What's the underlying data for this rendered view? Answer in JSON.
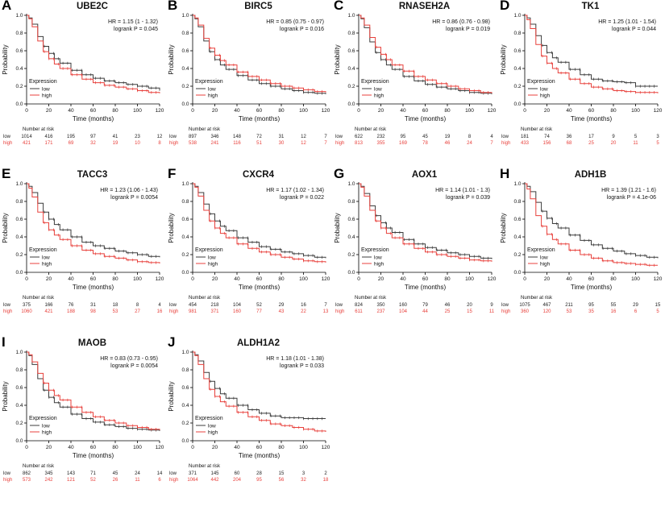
{
  "chart_data": {
    "type": "line",
    "subtype": "kaplan-meier-survival",
    "xlabel": "Time (months)",
    "ylabel": "Probability",
    "x_ticks": [
      0,
      20,
      40,
      60,
      80,
      100,
      120
    ],
    "y_ticks": [
      "0.0",
      "0.2",
      "0.4",
      "0.6",
      "0.8",
      "1.0"
    ],
    "xlim": [
      0,
      120
    ],
    "ylim": [
      0,
      1
    ],
    "grid": false,
    "legend_title": "Expression",
    "legend_items": [
      "low",
      "high"
    ],
    "legend_position": "bottom-left",
    "risk_header": "Number at risk",
    "colors": {
      "low": "#3c3c3c",
      "high": "#e8413c"
    },
    "curve_time_points": [
      0,
      2,
      5,
      10,
      15,
      20,
      25,
      30,
      40,
      50,
      60,
      70,
      80,
      90,
      100,
      110,
      120
    ],
    "panels": [
      {
        "letter": "A",
        "gene": "UBE2C",
        "hr": "HR = 1.15 (1 - 1.32)",
        "logrank": "logrank P = 0.045",
        "low": {
          "label": "low",
          "risk": [
            1014,
            416,
            195,
            97,
            41,
            23,
            12
          ],
          "s": [
            1,
            0.97,
            0.9,
            0.76,
            0.65,
            0.57,
            0.51,
            0.46,
            0.38,
            0.33,
            0.29,
            0.26,
            0.24,
            0.22,
            0.2,
            0.18,
            0.15
          ]
        },
        "high": {
          "label": "high",
          "risk": [
            421,
            171,
            69,
            32,
            19,
            10,
            8
          ],
          "s": [
            1,
            0.96,
            0.87,
            0.71,
            0.59,
            0.51,
            0.45,
            0.4,
            0.33,
            0.28,
            0.24,
            0.21,
            0.19,
            0.17,
            0.15,
            0.13,
            0.12
          ]
        }
      },
      {
        "letter": "B",
        "gene": "BIRC5",
        "hr": "HR = 0.85 (0.75 - 0.97)",
        "logrank": "logrank P = 0.016",
        "low": {
          "label": "low",
          "risk": [
            897,
            346,
            148,
            72,
            31,
            12,
            7
          ],
          "s": [
            1,
            0.96,
            0.87,
            0.71,
            0.59,
            0.5,
            0.44,
            0.39,
            0.32,
            0.27,
            0.23,
            0.2,
            0.17,
            0.15,
            0.13,
            0.12,
            0.11
          ]
        },
        "high": {
          "label": "high",
          "risk": [
            538,
            241,
            116,
            51,
            30,
            12,
            7
          ],
          "s": [
            1,
            0.97,
            0.89,
            0.74,
            0.63,
            0.55,
            0.49,
            0.44,
            0.36,
            0.31,
            0.27,
            0.23,
            0.2,
            0.18,
            0.16,
            0.14,
            0.13
          ]
        }
      },
      {
        "letter": "C",
        "gene": "RNASEH2A",
        "hr": "HR = 0.86 (0.76 - 0.98)",
        "logrank": "logrank P = 0.019",
        "low": {
          "label": "low",
          "risk": [
            622,
            232,
            95,
            45,
            19,
            8,
            4
          ],
          "s": [
            1,
            0.96,
            0.86,
            0.7,
            0.58,
            0.5,
            0.44,
            0.39,
            0.31,
            0.26,
            0.22,
            0.19,
            0.17,
            0.15,
            0.13,
            0.12,
            0.11
          ]
        },
        "high": {
          "label": "high",
          "risk": [
            813,
            355,
            169,
            78,
            46,
            24,
            7
          ],
          "s": [
            1,
            0.97,
            0.89,
            0.75,
            0.64,
            0.56,
            0.5,
            0.44,
            0.37,
            0.31,
            0.27,
            0.23,
            0.2,
            0.17,
            0.15,
            0.13,
            0.12
          ]
        }
      },
      {
        "letter": "D",
        "gene": "TK1",
        "hr": "HR = 1.25 (1.01 - 1.54)",
        "logrank": "logrank P = 0.044",
        "low": {
          "label": "low",
          "risk": [
            181,
            74,
            36,
            17,
            9,
            5,
            3
          ],
          "s": [
            1,
            0.97,
            0.9,
            0.77,
            0.66,
            0.58,
            0.52,
            0.47,
            0.39,
            0.33,
            0.28,
            0.26,
            0.25,
            0.24,
            0.2,
            0.2,
            0.2
          ]
        },
        "high": {
          "label": "high",
          "risk": [
            433,
            156,
            68,
            25,
            20,
            11,
            5
          ],
          "s": [
            1,
            0.95,
            0.85,
            0.67,
            0.54,
            0.46,
            0.4,
            0.35,
            0.28,
            0.23,
            0.19,
            0.17,
            0.15,
            0.14,
            0.13,
            0.13,
            0.12
          ]
        }
      },
      {
        "letter": "E",
        "gene": "TACC3",
        "hr": "HR = 1.23 (1.06 - 1.43)",
        "logrank": "logrank P = 0.0054",
        "low": {
          "label": "low",
          "risk": [
            375,
            166,
            76,
            31,
            18,
            8,
            4
          ],
          "s": [
            1,
            0.97,
            0.9,
            0.78,
            0.68,
            0.6,
            0.54,
            0.48,
            0.4,
            0.34,
            0.3,
            0.27,
            0.24,
            0.22,
            0.2,
            0.18,
            0.17
          ]
        },
        "high": {
          "label": "high",
          "risk": [
            1060,
            421,
            188,
            98,
            53,
            27,
            16
          ],
          "s": [
            1,
            0.95,
            0.85,
            0.68,
            0.56,
            0.48,
            0.42,
            0.37,
            0.3,
            0.25,
            0.21,
            0.18,
            0.16,
            0.14,
            0.12,
            0.11,
            0.1
          ]
        }
      },
      {
        "letter": "F",
        "gene": "CXCR4",
        "hr": "HR = 1.17 (1.02 - 1.34)",
        "logrank": "logrank P = 0.022",
        "low": {
          "label": "low",
          "risk": [
            454,
            218,
            104,
            52,
            29,
            16,
            7
          ],
          "s": [
            1,
            0.97,
            0.9,
            0.77,
            0.66,
            0.58,
            0.52,
            0.47,
            0.39,
            0.34,
            0.29,
            0.26,
            0.23,
            0.21,
            0.19,
            0.17,
            0.16
          ]
        },
        "high": {
          "label": "high",
          "risk": [
            981,
            371,
            160,
            77,
            43,
            22,
            13
          ],
          "s": [
            1,
            0.96,
            0.86,
            0.7,
            0.58,
            0.5,
            0.44,
            0.39,
            0.32,
            0.27,
            0.23,
            0.2,
            0.17,
            0.15,
            0.13,
            0.12,
            0.11
          ]
        }
      },
      {
        "letter": "G",
        "gene": "AOX1",
        "hr": "HR = 1.14 (1.01 - 1.3)",
        "logrank": "logrank P = 0.039",
        "low": {
          "label": "low",
          "risk": [
            824,
            350,
            160,
            79,
            46,
            20,
            9
          ],
          "s": [
            1,
            0.97,
            0.89,
            0.75,
            0.64,
            0.56,
            0.5,
            0.45,
            0.37,
            0.32,
            0.28,
            0.25,
            0.22,
            0.2,
            0.18,
            0.16,
            0.15
          ]
        },
        "high": {
          "label": "high",
          "risk": [
            611,
            237,
            104,
            44,
            25,
            15,
            11
          ],
          "s": [
            1,
            0.96,
            0.86,
            0.7,
            0.58,
            0.5,
            0.44,
            0.39,
            0.32,
            0.27,
            0.23,
            0.2,
            0.18,
            0.16,
            0.14,
            0.13,
            0.12
          ]
        }
      },
      {
        "letter": "H",
        "gene": "ADH1B",
        "hr": "HR = 1.39 (1.21 - 1.6)",
        "logrank": "logrank P = 4.1e-06",
        "low": {
          "label": "low",
          "risk": [
            1075,
            467,
            211,
            95,
            55,
            29,
            15
          ],
          "s": [
            1,
            0.97,
            0.91,
            0.79,
            0.69,
            0.61,
            0.55,
            0.5,
            0.42,
            0.36,
            0.31,
            0.27,
            0.24,
            0.21,
            0.19,
            0.17,
            0.16
          ]
        },
        "high": {
          "label": "high",
          "risk": [
            360,
            120,
            53,
            35,
            16,
            6,
            5
          ],
          "s": [
            1,
            0.94,
            0.83,
            0.64,
            0.52,
            0.43,
            0.37,
            0.32,
            0.25,
            0.2,
            0.16,
            0.13,
            0.11,
            0.1,
            0.09,
            0.08,
            0.08
          ]
        }
      },
      {
        "letter": "I",
        "gene": "MAOB",
        "hr": "HR = 0.83 (0.73 - 0.95)",
        "logrank": "logrank P = 0.0054",
        "low": {
          "label": "low",
          "risk": [
            862,
            345,
            143,
            71,
            45,
            24,
            14
          ],
          "s": [
            1,
            0.96,
            0.86,
            0.7,
            0.57,
            0.49,
            0.43,
            0.38,
            0.3,
            0.25,
            0.21,
            0.18,
            0.16,
            0.14,
            0.13,
            0.12,
            0.11
          ]
        },
        "high": {
          "label": "high",
          "risk": [
            573,
            242,
            121,
            52,
            26,
            11,
            6
          ],
          "s": [
            1,
            0.97,
            0.89,
            0.76,
            0.65,
            0.57,
            0.51,
            0.46,
            0.38,
            0.32,
            0.27,
            0.23,
            0.2,
            0.17,
            0.15,
            0.13,
            0.12
          ]
        }
      },
      {
        "letter": "J",
        "gene": "ALDH1A2",
        "hr": "HR = 1.18 (1.01 - 1.38)",
        "logrank": "logrank P = 0.033",
        "low": {
          "label": "low",
          "risk": [
            371,
            145,
            60,
            28,
            15,
            3,
            2
          ],
          "s": [
            1,
            0.97,
            0.9,
            0.77,
            0.67,
            0.59,
            0.53,
            0.48,
            0.4,
            0.35,
            0.31,
            0.28,
            0.26,
            0.26,
            0.25,
            0.25,
            0.25
          ]
        },
        "high": {
          "label": "high",
          "risk": [
            1064,
            442,
            204,
            95,
            56,
            32,
            18
          ],
          "s": [
            1,
            0.96,
            0.86,
            0.7,
            0.58,
            0.5,
            0.44,
            0.39,
            0.32,
            0.27,
            0.23,
            0.19,
            0.17,
            0.15,
            0.13,
            0.11,
            0.1
          ]
        }
      }
    ]
  }
}
